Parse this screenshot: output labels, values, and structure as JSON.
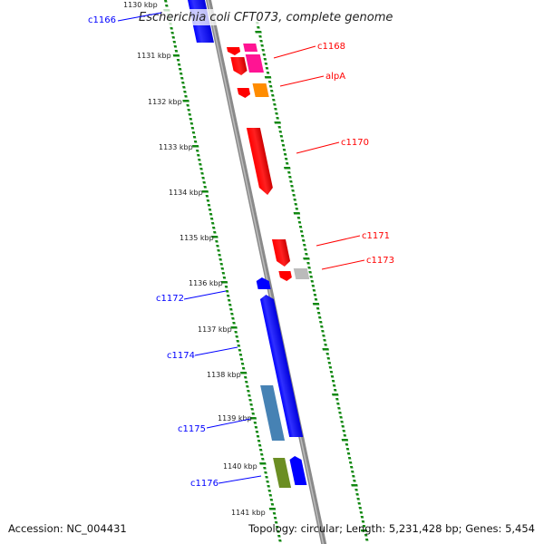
{
  "title": "Escherichia coli CFT073, complete genome",
  "footer": {
    "accession": "Accession: NC_004431",
    "summary": "Topology: circular; Length: 5,231,428 bp; Genes: 5,454"
  },
  "ticks": [
    "1130 kbp",
    "1131 kbp",
    "1132 kbp",
    "1133 kbp",
    "1134 kbp",
    "1135 kbp",
    "1136 kbp",
    "1137 kbp",
    "1138 kbp",
    "1139 kbp",
    "1140 kbp",
    "1141 kbp"
  ],
  "genes": {
    "forward": [
      "c1168",
      "alpA",
      "c1170",
      "c1171",
      "c1173"
    ],
    "reverse": [
      "c1166",
      "c1172",
      "c1174",
      "c1175",
      "c1176"
    ]
  },
  "colors": {
    "forward_label": "#ff0000",
    "reverse_label": "#0000ff",
    "tick": "#118811",
    "backbone": "#888888"
  }
}
